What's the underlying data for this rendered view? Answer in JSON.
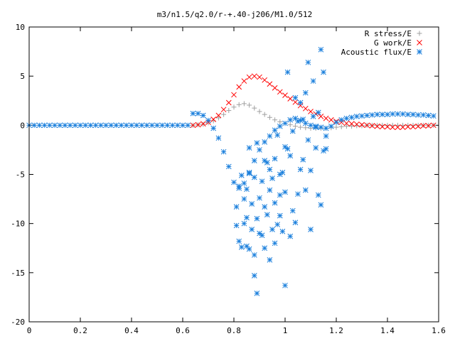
{
  "chart_data": {
    "type": "scatter",
    "title": "m3/n1.5/q2.0/r-+.40-j206/M1.0/512",
    "xlabel": "",
    "ylabel": "",
    "xlim": [
      0,
      1.6
    ],
    "ylim": [
      -20,
      10
    ],
    "x_ticks": [
      "0",
      "0.2",
      "0.4",
      "0.6",
      "0.8",
      "1",
      "1.2",
      "1.4",
      "1.6"
    ],
    "y_ticks": [
      "10",
      "5",
      "0",
      "-5",
      "-10",
      "-15",
      "-20"
    ],
    "grid": false,
    "legend_position": "top-right",
    "series": [
      {
        "name": "R stress/E",
        "marker": "plus",
        "color": "#a0a0a0",
        "x": [
          0.64,
          0.66,
          0.68,
          0.7,
          0.72,
          0.74,
          0.76,
          0.78,
          0.8,
          0.82,
          0.84,
          0.86,
          0.88,
          0.9,
          0.92,
          0.94,
          0.96,
          0.98,
          1.0,
          1.02,
          1.04,
          1.06,
          1.08,
          1.1,
          1.12,
          1.14,
          1.16,
          1.18,
          1.2,
          1.22,
          1.24,
          1.26,
          1.28,
          1.3,
          1.32,
          1.34,
          1.36,
          1.38,
          1.4,
          1.42,
          1.44,
          1.46,
          1.48,
          1.5,
          1.52,
          1.54,
          1.56,
          1.58
        ],
        "y": [
          0.0,
          0.05,
          0.1,
          0.25,
          0.45,
          0.75,
          1.1,
          1.5,
          1.85,
          2.1,
          2.2,
          2.05,
          1.75,
          1.4,
          1.1,
          0.8,
          0.55,
          0.35,
          0.2,
          0.05,
          -0.1,
          -0.2,
          -0.25,
          -0.3,
          -0.3,
          -0.3,
          -0.3,
          -0.25,
          -0.2,
          -0.15,
          -0.1,
          -0.1,
          -0.05,
          -0.05,
          0.0,
          0.0,
          0.0,
          0.0,
          0.0,
          0.0,
          0.0,
          0.0,
          0.0,
          0.0,
          0.0,
          0.0,
          0.0,
          0.0
        ]
      },
      {
        "name": "G work/E",
        "marker": "cross",
        "color": "#ff0000",
        "x": [
          0.64,
          0.66,
          0.68,
          0.7,
          0.72,
          0.74,
          0.76,
          0.78,
          0.8,
          0.82,
          0.84,
          0.86,
          0.88,
          0.9,
          0.92,
          0.94,
          0.96,
          0.98,
          1.0,
          1.02,
          1.04,
          1.06,
          1.08,
          1.1,
          1.12,
          1.14,
          1.16,
          1.18,
          1.2,
          1.22,
          1.24,
          1.26,
          1.28,
          1.3,
          1.32,
          1.34,
          1.36,
          1.38,
          1.4,
          1.42,
          1.44,
          1.46,
          1.48,
          1.5,
          1.52,
          1.54,
          1.56,
          1.58
        ],
        "y": [
          0.0,
          0.05,
          0.15,
          0.3,
          0.6,
          1.0,
          1.6,
          2.3,
          3.1,
          3.9,
          4.5,
          4.9,
          5.0,
          4.9,
          4.6,
          4.2,
          3.8,
          3.4,
          3.05,
          2.7,
          2.35,
          2.0,
          1.7,
          1.4,
          1.15,
          0.9,
          0.7,
          0.55,
          0.4,
          0.3,
          0.2,
          0.15,
          0.1,
          0.05,
          0.0,
          -0.05,
          -0.1,
          -0.15,
          -0.15,
          -0.2,
          -0.2,
          -0.2,
          -0.15,
          -0.15,
          -0.1,
          -0.05,
          -0.05,
          0.0
        ]
      },
      {
        "name": "Acoustic flux/E",
        "marker": "star",
        "color": "#1a7fdc",
        "x": [
          0.0,
          0.02,
          0.04,
          0.06,
          0.08,
          0.1,
          0.12,
          0.14,
          0.16,
          0.18,
          0.2,
          0.22,
          0.24,
          0.26,
          0.28,
          0.3,
          0.32,
          0.34,
          0.36,
          0.38,
          0.4,
          0.42,
          0.44,
          0.46,
          0.48,
          0.5,
          0.52,
          0.54,
          0.56,
          0.58,
          0.6,
          0.62,
          0.64,
          0.66,
          0.68,
          0.7,
          0.72,
          0.74,
          0.76,
          0.78,
          0.8,
          0.82,
          0.84,
          0.86,
          0.88,
          0.9,
          0.92,
          0.94,
          0.96,
          0.98,
          1.0,
          1.02,
          1.04,
          1.06,
          1.08,
          1.1,
          1.12,
          1.14,
          1.16,
          1.18,
          1.2,
          1.22,
          1.24,
          1.26,
          1.28,
          1.3,
          1.32,
          1.34,
          1.36,
          1.38,
          1.4,
          1.42,
          1.44,
          1.46,
          1.48,
          1.5,
          1.52,
          1.54,
          1.56,
          1.58,
          0.81,
          0.81,
          0.82,
          0.82,
          0.83,
          0.83,
          0.84,
          0.84,
          0.85,
          0.85,
          0.85,
          0.86,
          0.86,
          0.86,
          0.87,
          0.87,
          0.88,
          0.88,
          0.88,
          0.89,
          0.89,
          0.89,
          0.9,
          0.9,
          0.91,
          0.91,
          0.92,
          0.92,
          0.92,
          0.93,
          0.93,
          0.94,
          0.94,
          0.94,
          0.95,
          0.95,
          0.96,
          0.96,
          0.96,
          0.97,
          0.97,
          0.98,
          0.98,
          0.98,
          0.99,
          0.99,
          1.0,
          1.0,
          1.0,
          1.01,
          1.01,
          1.02,
          1.02,
          1.03,
          1.03,
          1.04,
          1.04,
          1.05,
          1.05,
          1.06,
          1.06,
          1.07,
          1.07,
          1.08,
          1.08,
          1.09,
          1.09,
          1.1,
          1.1,
          1.11,
          1.11,
          1.12,
          1.12,
          1.13,
          1.13,
          1.14,
          1.14,
          1.15,
          1.15,
          1.16,
          1.16
        ],
        "y": [
          0,
          0,
          0,
          0,
          0,
          0,
          0,
          0,
          0,
          0,
          0,
          0,
          0,
          0,
          0,
          0,
          0,
          0,
          0,
          0,
          0,
          0,
          0,
          0,
          0,
          0,
          0,
          0,
          0,
          0,
          0,
          0,
          1.2,
          1.2,
          1.0,
          0.5,
          -0.3,
          -1.3,
          -2.7,
          -4.2,
          -5.8,
          -6.4,
          -5.9,
          -4.9,
          -3.6,
          -2.5,
          -1.7,
          -1.1,
          -0.5,
          -0.1,
          0.2,
          0.55,
          0.7,
          0.5,
          0.2,
          0.0,
          -0.1,
          -0.2,
          -0.3,
          -0.1,
          0.3,
          0.55,
          0.7,
          0.8,
          0.9,
          0.95,
          1.0,
          1.05,
          1.1,
          1.1,
          1.1,
          1.15,
          1.15,
          1.15,
          1.1,
          1.1,
          1.05,
          1.05,
          1.0,
          0.95,
          -8.3,
          -10.2,
          -11.8,
          -6.2,
          -12.4,
          -5.1,
          -7.5,
          -10.0,
          -12.3,
          -9.4,
          -6.5,
          -12.6,
          -4.8,
          -2.3,
          -8.0,
          -10.6,
          -15.3,
          -13.2,
          -5.3,
          -17.1,
          -9.5,
          -1.8,
          -7.4,
          -11.0,
          -5.7,
          -11.2,
          -3.6,
          -8.3,
          -12.5,
          -3.8,
          -9.1,
          -4.5,
          -13.7,
          -6.6,
          -5.4,
          -10.6,
          -7.9,
          -3.4,
          -12.0,
          -10.1,
          -1.0,
          -7.1,
          -9.2,
          -5.0,
          -10.8,
          -4.8,
          -2.2,
          -16.3,
          -6.8,
          5.4,
          -2.4,
          -3.1,
          -11.3,
          -0.6,
          -8.7,
          2.8,
          -9.9,
          0.4,
          -7.0,
          2.3,
          -4.5,
          0.6,
          -3.5,
          3.3,
          -6.6,
          6.4,
          -1.5,
          -10.6,
          -4.6,
          4.5,
          0.9,
          -0.2,
          -2.3,
          1.3,
          -7.1,
          7.7,
          -8.1,
          -2.6,
          5.4,
          -1.1,
          -2.4
        ]
      }
    ]
  }
}
